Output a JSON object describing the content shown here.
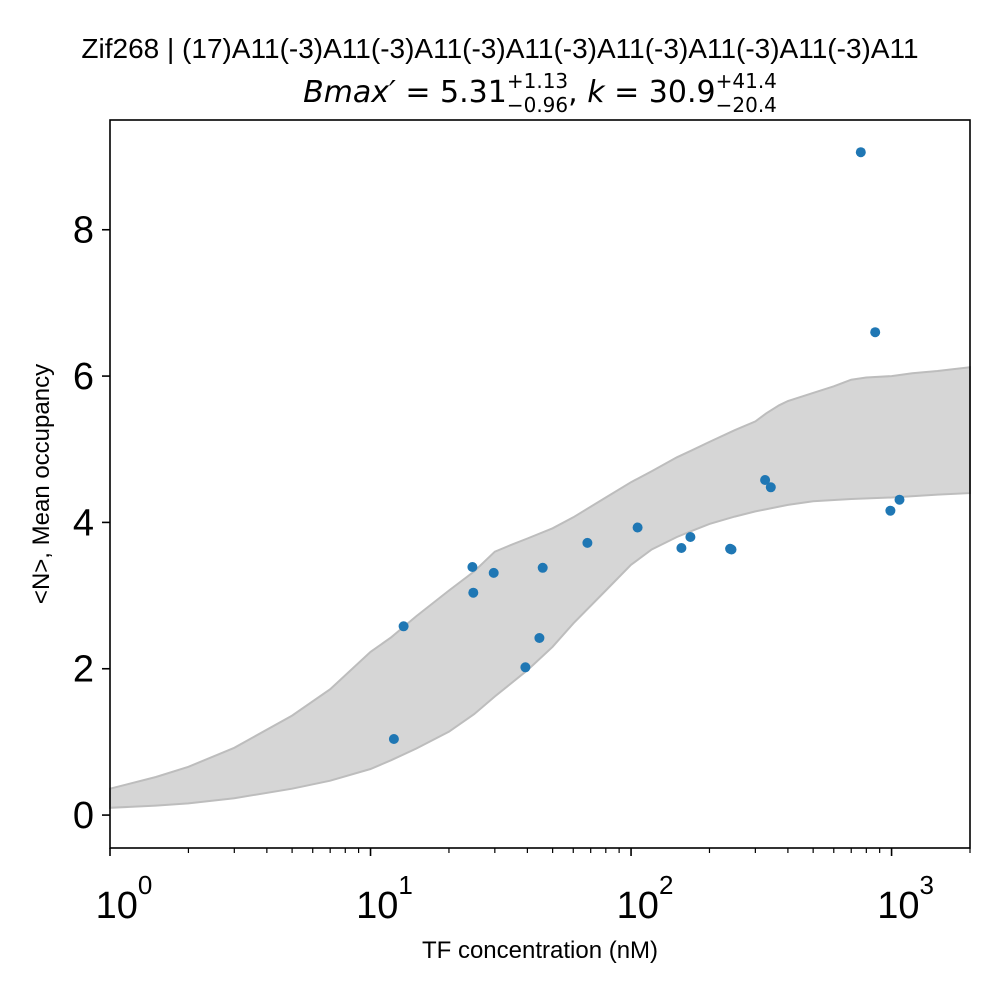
{
  "chart_data": {
    "type": "scatter",
    "title": "Zif268 | (17)A11(-3)A11(-3)A11(-3)A11(-3)A11(-3)A11(-3)A11(-3)A11",
    "subtitle": {
      "lhs1": "Bmax′",
      "eq1": " = 5.31",
      "sup1": "+1.13",
      "sub1": "−0.96",
      "sep": ", ",
      "lhs2": "k",
      "eq2": " = 30.9",
      "sup2": "+41.4",
      "sub2": "−20.4"
    },
    "xlabel": "TF concentration (nM)",
    "ylabel": "<N>, Mean occupancy",
    "xscale": "log",
    "xlim": [
      1,
      2000
    ],
    "ylim": [
      -0.45,
      9.5
    ],
    "x_ticks": [
      {
        "value": 1,
        "base": "10",
        "exp": "0"
      },
      {
        "value": 10,
        "base": "10",
        "exp": "1"
      },
      {
        "value": 100,
        "base": "10",
        "exp": "2"
      },
      {
        "value": 1000,
        "base": "10",
        "exp": "3"
      }
    ],
    "y_ticks": [
      {
        "value": 0,
        "label": "0"
      },
      {
        "value": 2,
        "label": "2"
      },
      {
        "value": 4,
        "label": "4"
      },
      {
        "value": 6,
        "label": "6"
      },
      {
        "value": 8,
        "label": "8"
      }
    ],
    "grid": false,
    "point_color": "#1f77b4",
    "band_color": "#d6d6d6",
    "band_edge_color": "#bdbdbd",
    "points": [
      {
        "x": 12.3,
        "y": 1.04
      },
      {
        "x": 13.4,
        "y": 2.58
      },
      {
        "x": 24.6,
        "y": 3.39
      },
      {
        "x": 24.8,
        "y": 3.04
      },
      {
        "x": 29.7,
        "y": 3.31
      },
      {
        "x": 39.3,
        "y": 2.02
      },
      {
        "x": 44.5,
        "y": 2.42
      },
      {
        "x": 45.8,
        "y": 3.38
      },
      {
        "x": 68.0,
        "y": 3.72
      },
      {
        "x": 106,
        "y": 3.93
      },
      {
        "x": 156,
        "y": 3.65
      },
      {
        "x": 169,
        "y": 3.8
      },
      {
        "x": 240,
        "y": 3.64
      },
      {
        "x": 243,
        "y": 3.63
      },
      {
        "x": 327,
        "y": 4.58
      },
      {
        "x": 344,
        "y": 4.48
      },
      {
        "x": 762,
        "y": 9.06
      },
      {
        "x": 865,
        "y": 6.6
      },
      {
        "x": 990,
        "y": 4.16
      },
      {
        "x": 1073,
        "y": 4.31
      }
    ],
    "band_upper": [
      [
        1,
        0.36
      ],
      [
        1.5,
        0.52
      ],
      [
        2,
        0.66
      ],
      [
        3,
        0.92
      ],
      [
        5,
        1.36
      ],
      [
        7,
        1.72
      ],
      [
        10,
        2.23
      ],
      [
        12,
        2.43
      ],
      [
        15,
        2.72
      ],
      [
        20,
        3.07
      ],
      [
        25,
        3.33
      ],
      [
        30,
        3.6
      ],
      [
        35,
        3.7
      ],
      [
        40,
        3.78
      ],
      [
        50,
        3.92
      ],
      [
        60,
        4.07
      ],
      [
        80,
        4.34
      ],
      [
        100,
        4.55
      ],
      [
        120,
        4.7
      ],
      [
        150,
        4.89
      ],
      [
        170,
        4.98
      ],
      [
        200,
        5.1
      ],
      [
        250,
        5.26
      ],
      [
        300,
        5.38
      ],
      [
        330,
        5.49
      ],
      [
        370,
        5.6
      ],
      [
        400,
        5.66
      ],
      [
        500,
        5.77
      ],
      [
        600,
        5.86
      ],
      [
        700,
        5.95
      ],
      [
        800,
        5.98
      ],
      [
        1000,
        6.0
      ],
      [
        1200,
        6.04
      ],
      [
        1500,
        6.07
      ],
      [
        2000,
        6.12
      ]
    ],
    "band_lower": [
      [
        1,
        0.1
      ],
      [
        1.5,
        0.13
      ],
      [
        2,
        0.16
      ],
      [
        3,
        0.23
      ],
      [
        5,
        0.36
      ],
      [
        7,
        0.47
      ],
      [
        10,
        0.63
      ],
      [
        12,
        0.75
      ],
      [
        15,
        0.91
      ],
      [
        20,
        1.14
      ],
      [
        25,
        1.38
      ],
      [
        30,
        1.62
      ],
      [
        40,
        1.98
      ],
      [
        50,
        2.3
      ],
      [
        60,
        2.62
      ],
      [
        80,
        3.07
      ],
      [
        100,
        3.42
      ],
      [
        120,
        3.63
      ],
      [
        150,
        3.8
      ],
      [
        170,
        3.88
      ],
      [
        200,
        3.98
      ],
      [
        250,
        4.08
      ],
      [
        300,
        4.15
      ],
      [
        400,
        4.24
      ],
      [
        500,
        4.29
      ],
      [
        700,
        4.32
      ],
      [
        1000,
        4.34
      ],
      [
        1500,
        4.38
      ],
      [
        2000,
        4.4
      ]
    ]
  }
}
